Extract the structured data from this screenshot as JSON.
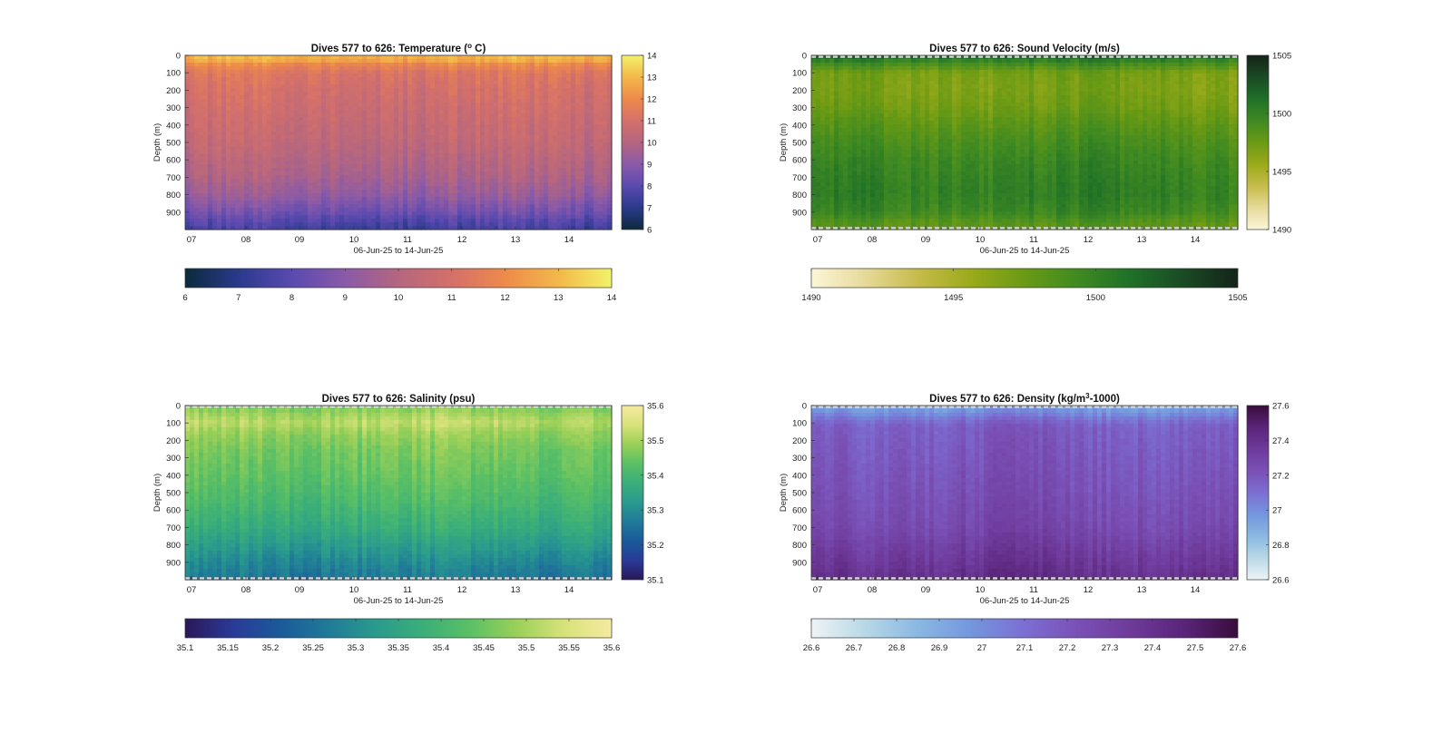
{
  "figure": {
    "background": "#ffffff"
  },
  "chart_data": [
    {
      "type": "heatmap",
      "title": "Dives 577 to 626: Temperature (°C)",
      "title_main": "Dives 577 to 626: Temperature (",
      "title_sup": "o",
      "title_tail": " C)",
      "xlabel": "06-Jun-25 to 14-Jun-25",
      "ylabel": "Depth (m)",
      "x_ticks": [
        "07",
        "08",
        "09",
        "10",
        "11",
        "12",
        "13",
        "14"
      ],
      "y_ticks": [
        "0",
        "100",
        "200",
        "300",
        "400",
        "500",
        "600",
        "700",
        "800",
        "900"
      ],
      "ylim": [
        1000,
        0
      ],
      "clim": [
        6,
        14
      ],
      "cbar_ticks": [
        "6",
        "7",
        "8",
        "9",
        "10",
        "11",
        "12",
        "13",
        "14"
      ],
      "colormap": [
        "#0c2a3c",
        "#2a3a8c",
        "#5a4ab0",
        "#8a5aa8",
        "#b5667f",
        "#d4706a",
        "#ee8a4a",
        "#f3b84a",
        "#f2f26a"
      ],
      "profile": [
        [
          0,
          12.9
        ],
        [
          30,
          12.6
        ],
        [
          50,
          11.9
        ],
        [
          100,
          11.2
        ],
        [
          200,
          10.9
        ],
        [
          300,
          10.7
        ],
        [
          400,
          10.5
        ],
        [
          500,
          10.3
        ],
        [
          600,
          10.0
        ],
        [
          700,
          9.7
        ],
        [
          800,
          9.2
        ],
        [
          900,
          8.4
        ],
        [
          950,
          7.8
        ],
        [
          1000,
          7.4
        ]
      ],
      "hatch_edges": false
    },
    {
      "type": "heatmap",
      "title": "Dives 577 to 626: Sound Velocity (m/s)",
      "xlabel": "06-Jun-25 to 14-Jun-25",
      "ylabel": "Depth (m)",
      "x_ticks": [
        "07",
        "08",
        "09",
        "10",
        "11",
        "12",
        "13",
        "14"
      ],
      "y_ticks": [
        "0",
        "100",
        "200",
        "300",
        "400",
        "500",
        "600",
        "700",
        "800",
        "900"
      ],
      "ylim": [
        1000,
        0
      ],
      "clim": [
        1490,
        1505
      ],
      "cbar_ticks": [
        "1490",
        "1495",
        "1500",
        "1505"
      ],
      "colormap": [
        "#fbf6d8",
        "#e6da9a",
        "#c6bb4a",
        "#9aaa1a",
        "#6a9a14",
        "#3f8a22",
        "#1f7028",
        "#1a4a24",
        "#142418"
      ],
      "profile": [
        [
          0,
          1501.8
        ],
        [
          40,
          1499.5
        ],
        [
          100,
          1497.0
        ],
        [
          200,
          1496.8
        ],
        [
          300,
          1497.3
        ],
        [
          400,
          1498.2
        ],
        [
          500,
          1499.0
        ],
        [
          600,
          1499.6
        ],
        [
          700,
          1500.0
        ],
        [
          800,
          1500.2
        ],
        [
          900,
          1499.6
        ],
        [
          950,
          1498.5
        ],
        [
          1000,
          1497.8
        ]
      ],
      "hatch_edges": true
    },
    {
      "type": "heatmap",
      "title": "Dives 577 to 626: Salinity (psu)",
      "xlabel": "06-Jun-25 to 14-Jun-25",
      "ylabel": "Depth (m)",
      "x_ticks": [
        "07",
        "08",
        "09",
        "10",
        "11",
        "12",
        "13",
        "14"
      ],
      "y_ticks": [
        "0",
        "100",
        "200",
        "300",
        "400",
        "500",
        "600",
        "700",
        "800",
        "900"
      ],
      "ylim": [
        1000,
        0
      ],
      "clim": [
        35.1,
        35.6
      ],
      "cbar_ticks": [
        "35.1",
        "35.15",
        "35.2",
        "35.25",
        "35.3",
        "35.35",
        "35.4",
        "35.45",
        "35.5",
        "35.55",
        "35.6"
      ],
      "side_ticks": [
        "35.1",
        "35.2",
        "35.3",
        "35.4",
        "35.5",
        "35.6"
      ],
      "colormap": [
        "#2a1858",
        "#2a3a98",
        "#1a5a9a",
        "#1f7a98",
        "#2a9a8e",
        "#3aae7a",
        "#5ac065",
        "#9ad058",
        "#d8e27a",
        "#f6eaa0"
      ],
      "profile": [
        [
          0,
          35.46
        ],
        [
          60,
          35.5
        ],
        [
          100,
          35.52
        ],
        [
          150,
          35.49
        ],
        [
          250,
          35.46
        ],
        [
          400,
          35.44
        ],
        [
          550,
          35.41
        ],
        [
          700,
          35.37
        ],
        [
          800,
          35.33
        ],
        [
          900,
          35.29
        ],
        [
          1000,
          35.26
        ]
      ],
      "hatch_edges": true
    },
    {
      "type": "heatmap",
      "title": "Dives 577 to 626: Density (kg/m³-1000)",
      "title_main": "Dives 577 to 626: Density (kg/m",
      "title_sup": "3",
      "title_tail": "-1000)",
      "xlabel": "06-Jun-25 to 14-Jun-25",
      "ylabel": "Depth (m)",
      "x_ticks": [
        "07",
        "08",
        "09",
        "10",
        "11",
        "12",
        "13",
        "14"
      ],
      "y_ticks": [
        "0",
        "100",
        "200",
        "300",
        "400",
        "500",
        "600",
        "700",
        "800",
        "900"
      ],
      "ylim": [
        1000,
        0
      ],
      "clim": [
        26.6,
        27.6
      ],
      "cbar_ticks": [
        "26.6",
        "26.7",
        "26.8",
        "26.9",
        "27",
        "27.1",
        "27.2",
        "27.3",
        "27.4",
        "27.5",
        "27.6"
      ],
      "side_ticks": [
        "26.6",
        "26.8",
        "27",
        "27.2",
        "27.4",
        "27.6"
      ],
      "colormap": [
        "#eef4f6",
        "#b8d8e6",
        "#8ab8e2",
        "#7496de",
        "#7c6ed2",
        "#7a50b6",
        "#6e3a9a",
        "#5a247a",
        "#3a0c3c"
      ],
      "profile": [
        [
          0,
          26.93
        ],
        [
          40,
          27.0
        ],
        [
          80,
          27.1
        ],
        [
          120,
          27.17
        ],
        [
          300,
          27.2
        ],
        [
          500,
          27.23
        ],
        [
          700,
          27.27
        ],
        [
          800,
          27.32
        ],
        [
          900,
          27.37
        ],
        [
          1000,
          27.42
        ]
      ],
      "hatch_edges": true
    }
  ]
}
